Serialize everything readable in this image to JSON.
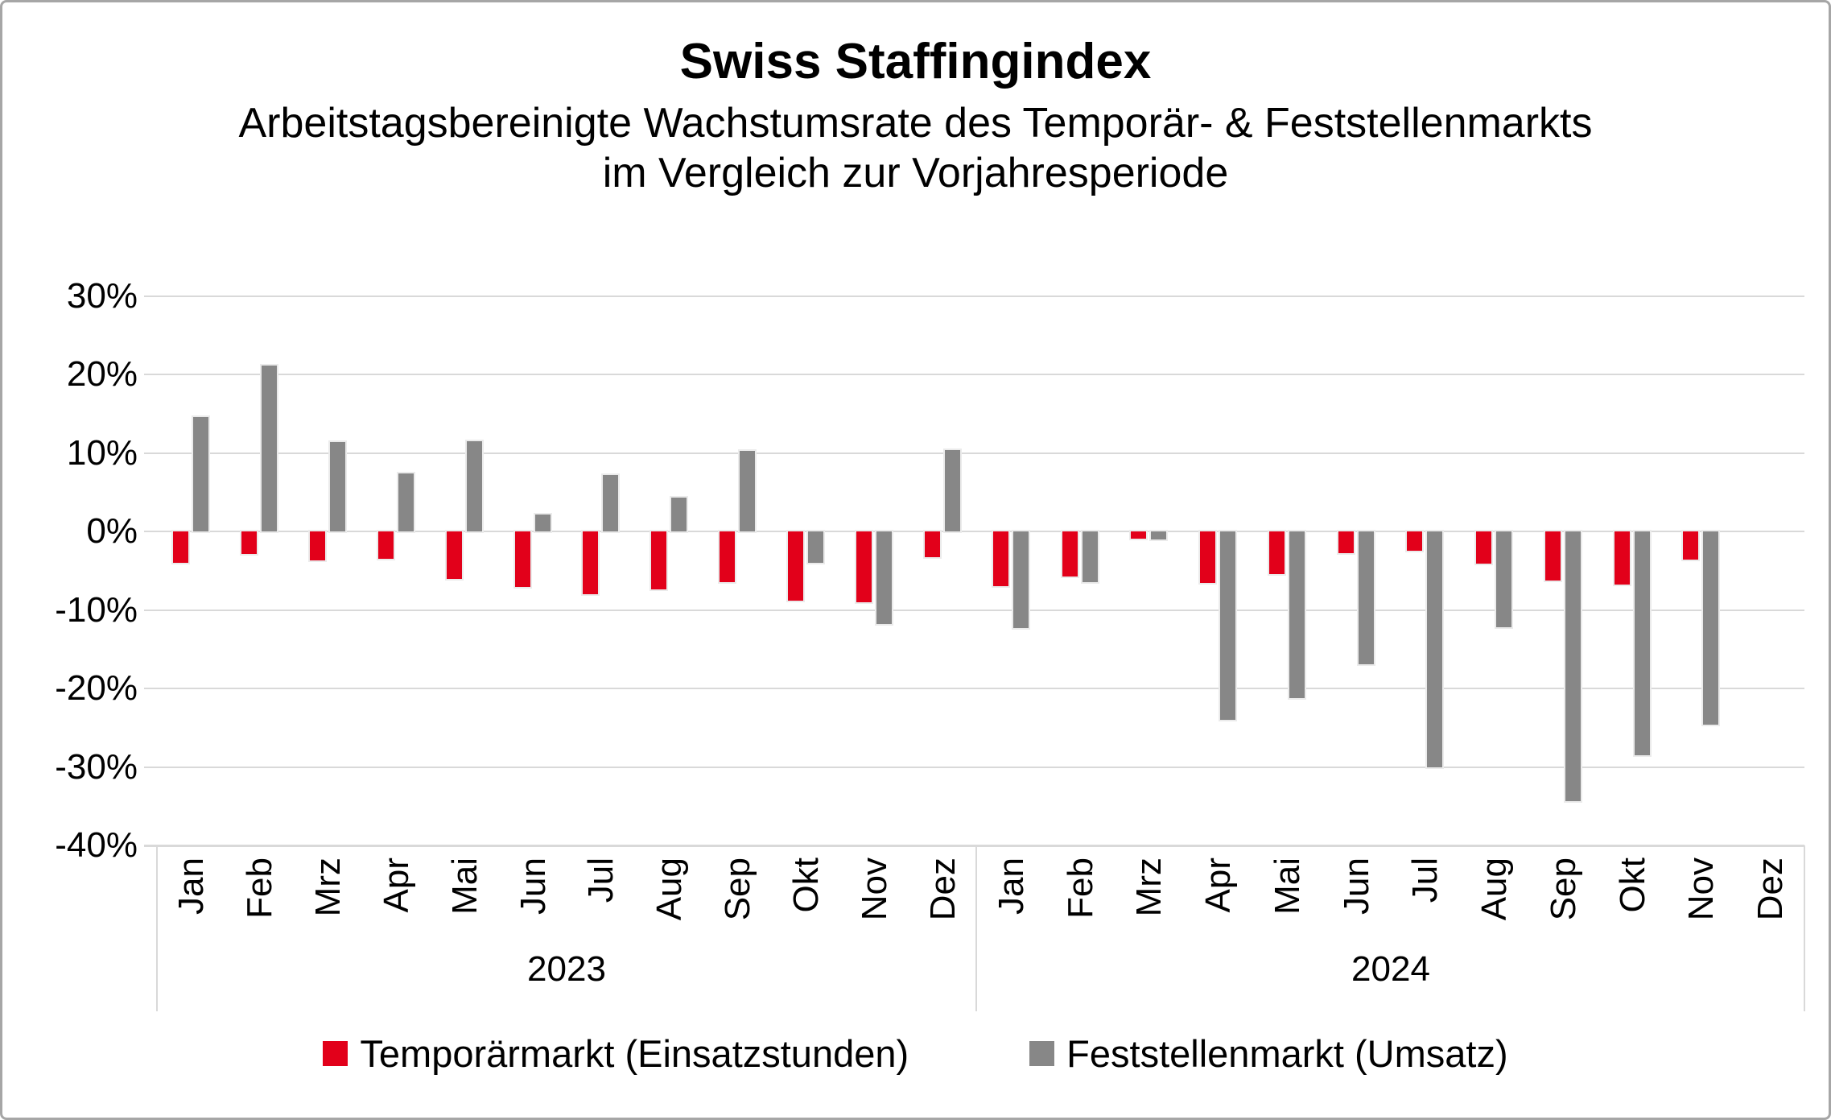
{
  "header": {
    "title": "Swiss Staffingindex",
    "subtitle_line1": "Arbeitstagsbereinigte Wachstumsrate des Temporär- & Feststellenmarkts",
    "subtitle_line2": "im Vergleich zur Vorjahresperiode"
  },
  "chart_data": {
    "type": "bar",
    "title": "Swiss Staffingindex",
    "subtitle": "Arbeitstagsbereinigte Wachstumsrate des Temporär- & Feststellenmarkts im Vergleich zur Vorjahresperiode",
    "months": [
      "Jan",
      "Feb",
      "Mrz",
      "Apr",
      "Mai",
      "Jun",
      "Jul",
      "Aug",
      "Sep",
      "Okt",
      "Nov",
      "Dez"
    ],
    "years": [
      "2023",
      "2024"
    ],
    "categories": [
      "Jan 2023",
      "Feb 2023",
      "Mrz 2023",
      "Apr 2023",
      "Mai 2023",
      "Jun 2023",
      "Jul 2023",
      "Aug 2023",
      "Sep 2023",
      "Okt 2023",
      "Nov 2023",
      "Dez 2023",
      "Jan 2024",
      "Feb 2024",
      "Mrz 2024",
      "Apr 2024",
      "Mai 2024",
      "Jun 2024",
      "Jul 2024",
      "Aug 2024",
      "Sep 2024",
      "Okt 2024",
      "Nov 2024",
      "Dez 2024"
    ],
    "series": [
      {
        "name": "Temporärmarkt (Einsatzstunden)",
        "color": "#e2001a",
        "values": [
          -4.0,
          -2.8,
          -3.7,
          -3.5,
          -6.0,
          -7.1,
          -8.0,
          -7.4,
          -6.4,
          -8.8,
          -9.0,
          -3.3,
          -7.0,
          -5.7,
          -0.9,
          -6.5,
          -5.4,
          -2.7,
          -2.4,
          -4.1,
          -6.2,
          -6.7,
          -3.6,
          null
        ]
      },
      {
        "name": "Feststellenmarkt (Umsatz)",
        "color": "#878787",
        "values": [
          14.6,
          21.2,
          11.4,
          7.4,
          11.5,
          2.2,
          7.2,
          4.3,
          10.3,
          -4.0,
          -11.8,
          10.4,
          -12.3,
          -6.4,
          -1.0,
          -24.0,
          -21.2,
          -16.9,
          -30.0,
          -12.2,
          -34.4,
          -28.5,
          -24.6,
          null
        ]
      }
    ],
    "ylabel": "",
    "xlabel": "",
    "ylim": [
      -40,
      30
    ],
    "ytick_step": 10,
    "ytick_labels": [
      "30%",
      "20%",
      "10%",
      "0%",
      "-10%",
      "-20%",
      "-30%",
      "-40%"
    ],
    "unit": "%",
    "grid": true,
    "grid_color": "#d9d9d9",
    "legend_position": "bottom"
  },
  "legend": {
    "items": [
      {
        "label": "Temporärmarkt (Einsatzstunden)",
        "color": "#e2001a"
      },
      {
        "label": "Feststellenmarkt (Umsatz)",
        "color": "#878787"
      }
    ]
  }
}
